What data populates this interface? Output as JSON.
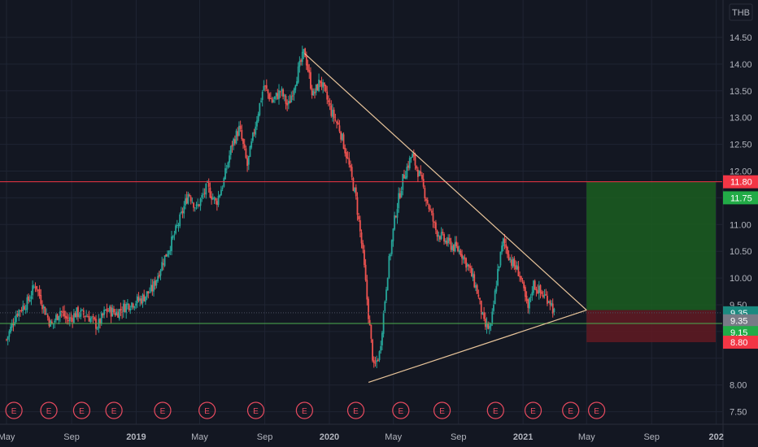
{
  "currency_label": "THB",
  "chart_data": {
    "type": "candlestick",
    "ylim": [
      7.3,
      14.75
    ],
    "y_ticks": [
      7.5,
      8.0,
      8.5,
      9.0,
      9.5,
      10.0,
      10.5,
      11.0,
      11.5,
      12.0,
      12.5,
      13.0,
      13.5,
      14.0,
      14.5
    ],
    "y_tick_labels": [
      "7.50",
      "8.00",
      "",
      "",
      "9.50",
      "10.00",
      "10.50",
      "11.00",
      "",
      "12.00",
      "12.50",
      "13.00",
      "13.50",
      "14.00",
      "14.50"
    ],
    "x_range": [
      "2018-05-01",
      "2021-12-31"
    ],
    "x_ticks": [
      {
        "date": "2018-05-01",
        "label": "May",
        "bold": false
      },
      {
        "date": "2018-09-01",
        "label": "Sep",
        "bold": false
      },
      {
        "date": "2019-01-01",
        "label": "2019",
        "bold": true
      },
      {
        "date": "2019-05-01",
        "label": "May",
        "bold": false
      },
      {
        "date": "2019-09-01",
        "label": "Sep",
        "bold": false
      },
      {
        "date": "2020-01-01",
        "label": "2020",
        "bold": true
      },
      {
        "date": "2020-05-01",
        "label": "May",
        "bold": false
      },
      {
        "date": "2020-09-01",
        "label": "Sep",
        "bold": false
      },
      {
        "date": "2021-01-01",
        "label": "2021",
        "bold": true
      },
      {
        "date": "2021-05-01",
        "label": "May",
        "bold": false
      },
      {
        "date": "2021-09-01",
        "label": "Sep",
        "bold": false
      },
      {
        "date": "2022-01-01",
        "label": "202",
        "bold": true
      }
    ],
    "price_path": [
      [
        "2018-05-01",
        8.85
      ],
      [
        "2018-05-20",
        9.35
      ],
      [
        "2018-06-10",
        9.55
      ],
      [
        "2018-06-25",
        9.9
      ],
      [
        "2018-07-10",
        9.45
      ],
      [
        "2018-07-25",
        9.1
      ],
      [
        "2018-08-10",
        9.4
      ],
      [
        "2018-08-25",
        9.2
      ],
      [
        "2018-09-10",
        9.35
      ],
      [
        "2018-10-01",
        9.3
      ],
      [
        "2018-10-20",
        9.1
      ],
      [
        "2018-11-05",
        9.4
      ],
      [
        "2018-11-25",
        9.35
      ],
      [
        "2018-12-15",
        9.5
      ],
      [
        "2019-01-10",
        9.6
      ],
      [
        "2019-02-01",
        9.8
      ],
      [
        "2019-02-20",
        10.3
      ],
      [
        "2019-03-10",
        10.7
      ],
      [
        "2019-03-25",
        11.1
      ],
      [
        "2019-04-10",
        11.6
      ],
      [
        "2019-04-25",
        11.3
      ],
      [
        "2019-05-15",
        11.7
      ],
      [
        "2019-06-01",
        11.4
      ],
      [
        "2019-06-15",
        11.8
      ],
      [
        "2019-07-01",
        12.5
      ],
      [
        "2019-07-15",
        12.8
      ],
      [
        "2019-07-30",
        12.1
      ],
      [
        "2019-08-15",
        12.9
      ],
      [
        "2019-08-30",
        13.6
      ],
      [
        "2019-09-15",
        13.3
      ],
      [
        "2019-10-01",
        13.5
      ],
      [
        "2019-10-15",
        13.2
      ],
      [
        "2019-11-01",
        13.8
      ],
      [
        "2019-11-15",
        14.25
      ],
      [
        "2019-12-01",
        13.4
      ],
      [
        "2019-12-15",
        13.7
      ],
      [
        "2020-01-05",
        13.1
      ],
      [
        "2020-01-20",
        12.8
      ],
      [
        "2020-02-05",
        12.2
      ],
      [
        "2020-02-20",
        11.5
      ],
      [
        "2020-03-05",
        10.4
      ],
      [
        "2020-03-15",
        9.3
      ],
      [
        "2020-03-25",
        8.3
      ],
      [
        "2020-04-05",
        8.6
      ],
      [
        "2020-04-20",
        10.1
      ],
      [
        "2020-05-05",
        11.2
      ],
      [
        "2020-05-20",
        11.9
      ],
      [
        "2020-06-05",
        12.3
      ],
      [
        "2020-06-20",
        11.9
      ],
      [
        "2020-07-05",
        11.4
      ],
      [
        "2020-07-20",
        10.9
      ],
      [
        "2020-08-05",
        10.7
      ],
      [
        "2020-08-20",
        10.6
      ],
      [
        "2020-09-05",
        10.5
      ],
      [
        "2020-09-20",
        10.2
      ],
      [
        "2020-10-05",
        9.8
      ],
      [
        "2020-10-20",
        9.1
      ],
      [
        "2020-11-01",
        9.05
      ],
      [
        "2020-11-15",
        10.2
      ],
      [
        "2020-11-25",
        10.7
      ],
      [
        "2020-12-10",
        10.3
      ],
      [
        "2020-12-25",
        10.1
      ],
      [
        "2021-01-10",
        9.4
      ],
      [
        "2021-01-20",
        9.9
      ],
      [
        "2021-02-05",
        9.7
      ],
      [
        "2021-02-20",
        9.6
      ],
      [
        "2021-03-01",
        9.35
      ]
    ],
    "lines": [
      {
        "name": "resistance",
        "color": "#f23645",
        "y": 11.8
      },
      {
        "name": "support",
        "color": "#4caf50",
        "y": 9.15
      }
    ],
    "trendlines": [
      {
        "name": "upper-trendline",
        "color": "#e8c49a",
        "from": [
          "2019-11-15",
          14.2
        ],
        "to": [
          "2021-05-01",
          9.4
        ]
      },
      {
        "name": "lower-trendline",
        "color": "#e8c49a",
        "from": [
          "2020-03-15",
          8.05
        ],
        "to": [
          "2021-05-01",
          9.4
        ]
      }
    ],
    "position": {
      "start": "2021-05-01",
      "end": "2021-12-31",
      "entry": 9.4,
      "target": 11.8,
      "stop": 8.8,
      "profit_color": "#1b5e20",
      "loss_color": "#5d1a22"
    },
    "price_tags": [
      {
        "label": "11.80",
        "value": 11.8,
        "bg": "#f23645",
        "fg": "#ffffff"
      },
      {
        "label": "11.75",
        "value": 11.5,
        "bg": "#22ab47",
        "fg": "#ffffff"
      },
      {
        "label": "9.35",
        "value": 9.35,
        "bg": "#1b8a80",
        "fg": "#ffffff"
      },
      {
        "label": "9.35",
        "value": 9.2,
        "bg": "#787b86",
        "fg": "#ffffff"
      },
      {
        "label": "9.15",
        "value": 8.98,
        "bg": "#22ab47",
        "fg": "#ffffff"
      },
      {
        "label": "8.80",
        "value": 8.8,
        "bg": "#f23645",
        "fg": "#ffffff"
      }
    ],
    "earnings_events": [
      {
        "date": "2018-05-15",
        "label": "E"
      },
      {
        "date": "2018-07-20",
        "label": "E"
      },
      {
        "date": "2018-09-20",
        "label": "E"
      },
      {
        "date": "2018-11-20",
        "label": "E"
      },
      {
        "date": "2019-02-20",
        "label": "E"
      },
      {
        "date": "2019-05-15",
        "label": "E"
      },
      {
        "date": "2019-08-15",
        "label": "E"
      },
      {
        "date": "2019-11-15",
        "label": "E"
      },
      {
        "date": "2020-02-20",
        "label": "E"
      },
      {
        "date": "2020-05-15",
        "label": "E"
      },
      {
        "date": "2020-08-01",
        "label": "E"
      },
      {
        "date": "2020-11-10",
        "label": "E"
      },
      {
        "date": "2021-01-20",
        "label": "E"
      },
      {
        "date": "2021-04-01",
        "label": "E"
      },
      {
        "date": "2021-05-20",
        "label": "E"
      }
    ],
    "colors": {
      "up": "#26a69a",
      "down": "#ef5350",
      "grid": "#1f2433",
      "axis_text": "#b2b5be"
    }
  }
}
